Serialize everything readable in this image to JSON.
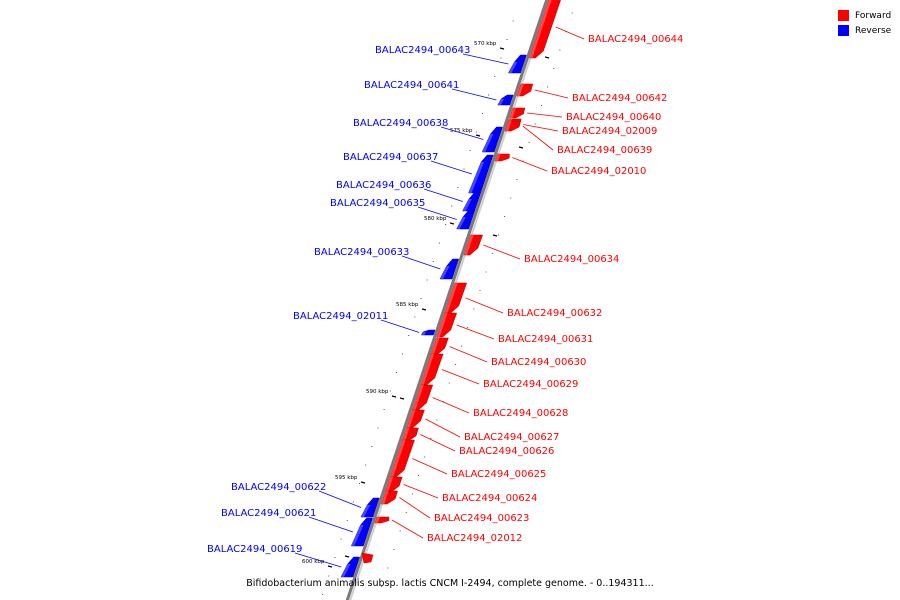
{
  "legend": {
    "forward": {
      "label": "Forward",
      "color": "#ff0000"
    },
    "reverse": {
      "label": "Reverse",
      "color": "#0000ff"
    }
  },
  "caption": "Bifidobacterium animalis subsp. lactis CNCM I-2494, complete genome. - 0..194311...",
  "scale_labels": [
    "570 kbp",
    "575 kbp",
    "580 kbp",
    "585 kbp",
    "590 kbp",
    "595 kbp",
    "600 kbp"
  ],
  "genes": [
    {
      "id": "BALAC2494_00644",
      "strand": "forward"
    },
    {
      "id": "BALAC2494_00643",
      "strand": "reverse"
    },
    {
      "id": "BALAC2494_00642",
      "strand": "forward"
    },
    {
      "id": "BALAC2494_00641",
      "strand": "reverse"
    },
    {
      "id": "BALAC2494_00640",
      "strand": "forward"
    },
    {
      "id": "BALAC2494_02009",
      "strand": "forward"
    },
    {
      "id": "BALAC2494_00639",
      "strand": "forward"
    },
    {
      "id": "BALAC2494_00638",
      "strand": "reverse"
    },
    {
      "id": "BALAC2494_02010",
      "strand": "forward"
    },
    {
      "id": "BALAC2494_00637",
      "strand": "reverse"
    },
    {
      "id": "BALAC2494_00636",
      "strand": "reverse"
    },
    {
      "id": "BALAC2494_00635",
      "strand": "reverse"
    },
    {
      "id": "BALAC2494_00634",
      "strand": "forward"
    },
    {
      "id": "BALAC2494_00633",
      "strand": "reverse"
    },
    {
      "id": "BALAC2494_00632",
      "strand": "forward"
    },
    {
      "id": "BALAC2494_02011",
      "strand": "reverse"
    },
    {
      "id": "BALAC2494_00631",
      "strand": "forward"
    },
    {
      "id": "BALAC2494_00630",
      "strand": "forward"
    },
    {
      "id": "BALAC2494_00629",
      "strand": "forward"
    },
    {
      "id": "BALAC2494_00628",
      "strand": "forward"
    },
    {
      "id": "BALAC2494_00627",
      "strand": "forward"
    },
    {
      "id": "BALAC2494_00626",
      "strand": "forward"
    },
    {
      "id": "BALAC2494_00625",
      "strand": "forward"
    },
    {
      "id": "BALAC2494_00624",
      "strand": "forward"
    },
    {
      "id": "BALAC2494_00623",
      "strand": "forward"
    },
    {
      "id": "BALAC2494_02012",
      "strand": "forward"
    },
    {
      "id": "BALAC2494_00622",
      "strand": "reverse"
    },
    {
      "id": "BALAC2494_00621",
      "strand": "reverse"
    },
    {
      "id": "BALAC2494_00619",
      "strand": "reverse"
    }
  ]
}
